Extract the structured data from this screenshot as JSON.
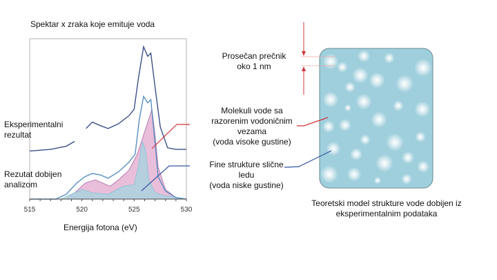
{
  "chart_title": "Spektar x zraka koje emituje voda",
  "labels": {
    "experimental": [
      "Eksperimentalni",
      "rezultat"
    ],
    "analysis": [
      "Rezutat dobijen",
      "analizom"
    ],
    "diameter": [
      "Prosečan prečnik",
      "oko 1 nm"
    ],
    "broken_bonds": [
      "Molekuli vode sa",
      "razorenim vodoničnim",
      "vezama",
      "(voda visoke gustine)"
    ],
    "ice_like": [
      "Fine strukture slične",
      "ledu",
      "(voda niske gustine)"
    ],
    "model_caption": [
      "Teoretski model strukture vode dobijen iz",
      "eksperimentalnim podataka"
    ]
  },
  "colors": {
    "experimental": "#3b4f86",
    "fit": "#5a8fc0",
    "high_density": "#e2a8cf",
    "low_density": "#a9d3e0",
    "model_bg": "#9fcfdc",
    "red_pointer": "#d0343a",
    "blue_pointer": "#3355a0"
  },
  "chart_data": {
    "type": "line",
    "title": "Spektar x zraka koje emituje voda",
    "xlabel": "Energija fotona (eV)",
    "ylabel": "",
    "xlim": [
      515,
      530
    ],
    "ylim": [
      0,
      1
    ],
    "xticks": [
      "515",
      "520",
      "525",
      "530"
    ],
    "series": [
      {
        "name": "Eksperimentalni rezultat",
        "style": "line",
        "segments": [
          [
            [
              515,
              0.3
            ],
            [
              517,
              0.31
            ],
            [
              518.5,
              0.33
            ],
            [
              519.3,
              0.36
            ]
          ],
          [
            [
              520.4,
              0.44
            ],
            [
              521,
              0.48
            ],
            [
              521.7,
              0.46
            ],
            [
              522.5,
              0.44
            ],
            [
              523.5,
              0.47
            ],
            [
              524.5,
              0.52
            ],
            [
              525,
              0.56
            ],
            [
              525.4,
              0.75
            ],
            [
              525.9,
              0.95
            ],
            [
              526.3,
              0.89
            ],
            [
              526.6,
              0.91
            ],
            [
              527,
              0.7
            ],
            [
              527.5,
              0.45
            ],
            [
              528.2,
              0.32
            ],
            [
              529,
              0.31
            ],
            [
              530,
              0.31
            ]
          ]
        ]
      },
      {
        "name": "Rezutat dobijen analizom",
        "style": "line",
        "points": [
          [
            515,
            0
          ],
          [
            517.5,
            0
          ],
          [
            518.5,
            0.03
          ],
          [
            519.5,
            0.1
          ],
          [
            520.3,
            0.14
          ],
          [
            521,
            0.16
          ],
          [
            521.8,
            0.15
          ],
          [
            522.5,
            0.13
          ],
          [
            523.5,
            0.17
          ],
          [
            524.5,
            0.23
          ],
          [
            525.1,
            0.28
          ],
          [
            525.5,
            0.5
          ],
          [
            525.9,
            0.64
          ],
          [
            526.3,
            0.6
          ],
          [
            526.6,
            0.62
          ],
          [
            527,
            0.35
          ],
          [
            527.3,
            0.14
          ],
          [
            528,
            0.05
          ],
          [
            529,
            0.01
          ],
          [
            530,
            0
          ]
        ]
      },
      {
        "name": "voda visoke gustine",
        "style": "area",
        "points": [
          [
            515,
            0
          ],
          [
            518.5,
            0
          ],
          [
            519.5,
            0.05
          ],
          [
            520.3,
            0.1
          ],
          [
            521.3,
            0.12
          ],
          [
            522,
            0.1
          ],
          [
            522.7,
            0.08
          ],
          [
            523.5,
            0.12
          ],
          [
            524.5,
            0.18
          ],
          [
            525.3,
            0.28
          ],
          [
            526,
            0.42
          ],
          [
            526.7,
            0.56
          ],
          [
            527,
            0.4
          ],
          [
            527.3,
            0.2
          ],
          [
            528,
            0.06
          ],
          [
            529,
            0.01
          ],
          [
            530,
            0
          ]
        ]
      },
      {
        "name": "voda niske gustine",
        "style": "area",
        "points": [
          [
            515,
            0
          ],
          [
            518,
            0
          ],
          [
            519,
            0.03
          ],
          [
            520,
            0.06
          ],
          [
            521,
            0.04
          ],
          [
            522.5,
            0.03
          ],
          [
            524,
            0.08
          ],
          [
            525,
            0.09
          ],
          [
            525.4,
            0.2
          ],
          [
            525.8,
            0.36
          ],
          [
            526.1,
            0.3
          ],
          [
            526.4,
            0.12
          ],
          [
            527,
            0.04
          ],
          [
            528,
            0.02
          ],
          [
            530,
            0
          ]
        ]
      }
    ]
  }
}
